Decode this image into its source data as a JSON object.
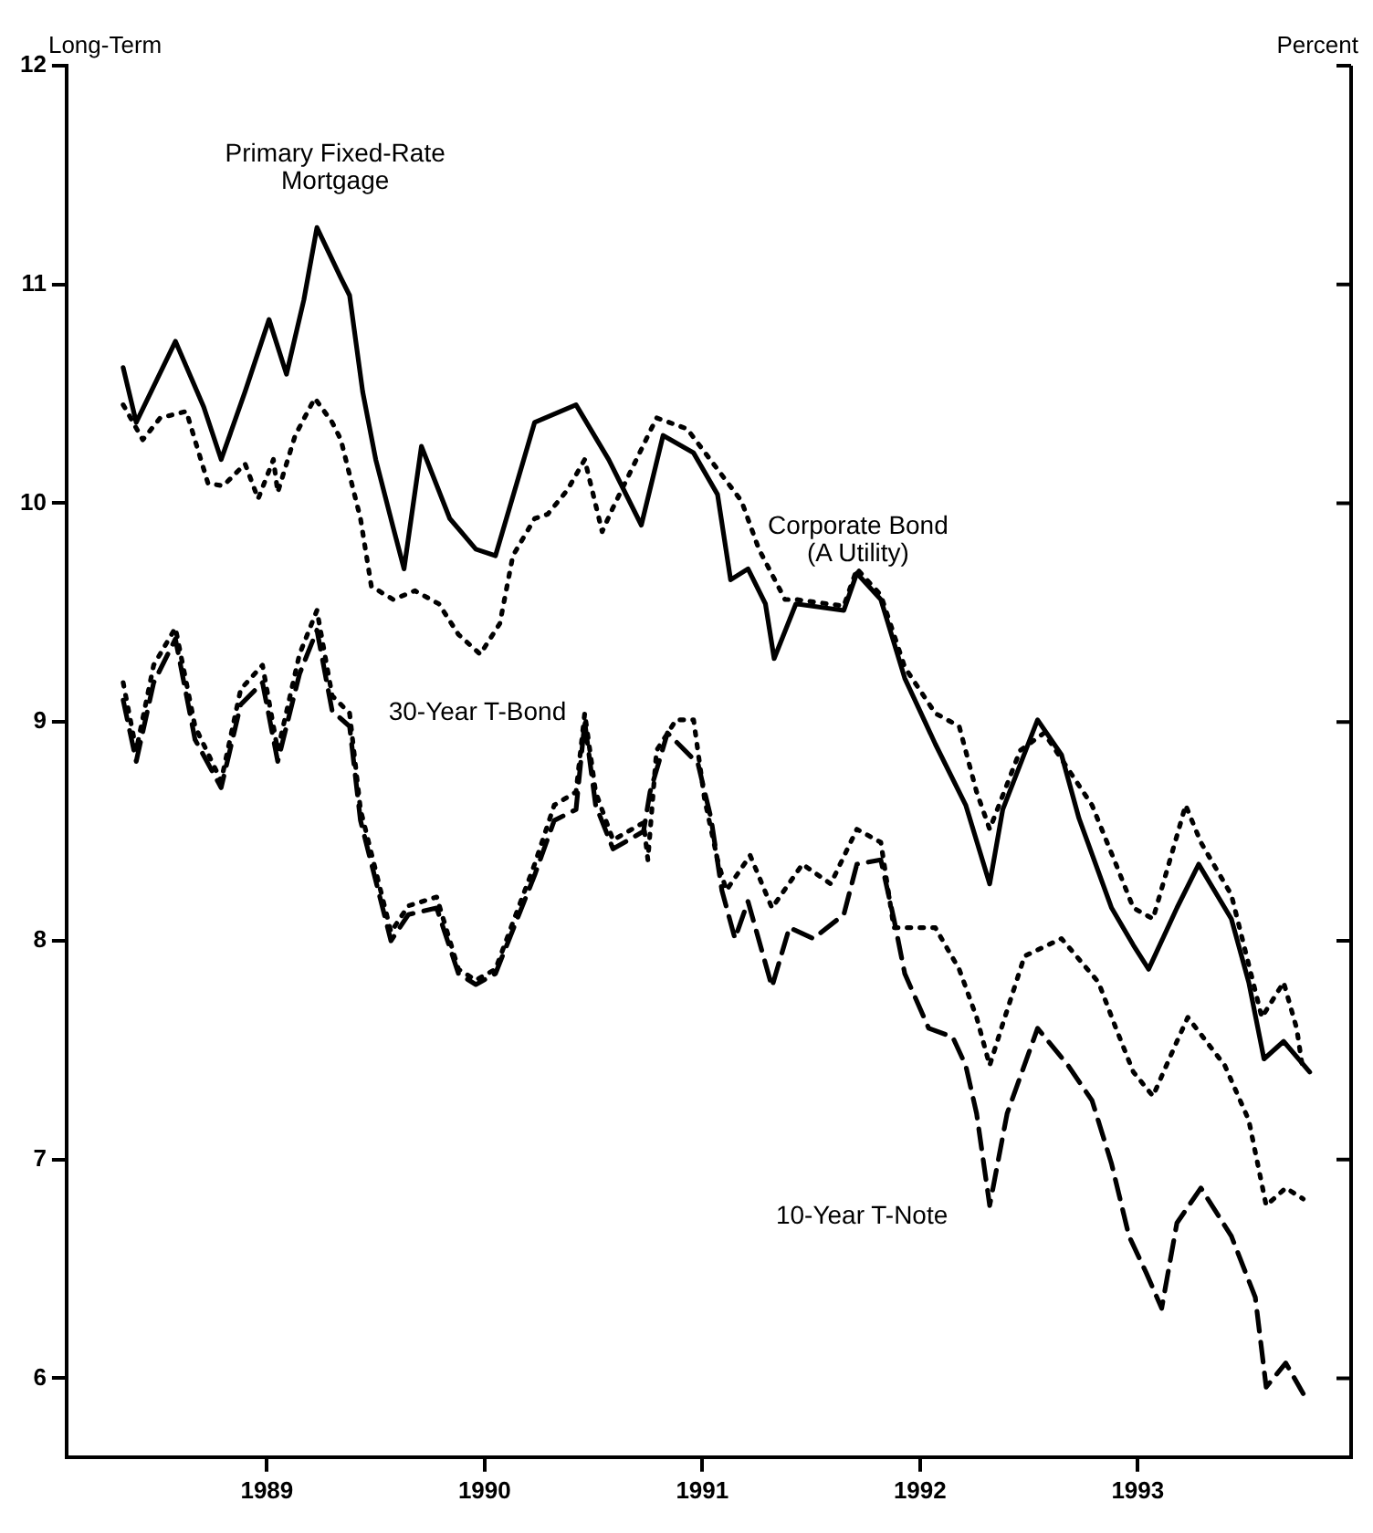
{
  "chart_data": {
    "type": "line",
    "title": "Long-Term",
    "ylabel": "Percent",
    "xlim": [
      1988.08,
      1993.98
    ],
    "xticks": [
      1989,
      1990,
      1991,
      1992,
      1993
    ],
    "ylim": [
      5.64,
      12
    ],
    "yticks": [
      6,
      7,
      8,
      9,
      10,
      11,
      12
    ],
    "grid": false,
    "legend": false,
    "marker": "none",
    "series": [
      {
        "name": "Primary Fixed-Rate Mortgage",
        "color": "#000000",
        "line_style": "solid",
        "x": [
          1988.34,
          1988.4,
          1988.58,
          1988.71,
          1988.79,
          1988.9,
          1989.01,
          1989.09,
          1989.17,
          1989.23,
          1989.34,
          1989.38,
          1989.44,
          1989.5,
          1989.58,
          1989.63,
          1989.71,
          1989.84,
          1989.96,
          1990.05,
          1990.18,
          1990.23,
          1990.42,
          1990.57,
          1990.72,
          1990.82,
          1990.96,
          1991.07,
          1991.13,
          1991.21,
          1991.29,
          1991.33,
          1991.43,
          1991.65,
          1991.71,
          1991.82,
          1991.93,
          1992.07,
          1992.21,
          1992.32,
          1992.38,
          1992.54,
          1992.65,
          1992.73,
          1992.88,
          1992.98,
          1993.05,
          1993.18,
          1993.28,
          1993.43,
          1993.51,
          1993.58,
          1993.67,
          1993.79
        ],
        "values": [
          10.62,
          10.37,
          10.74,
          10.44,
          10.2,
          10.51,
          10.84,
          10.59,
          10.93,
          11.26,
          11.03,
          10.95,
          10.51,
          10.2,
          9.89,
          9.7,
          10.26,
          9.93,
          9.79,
          9.76,
          10.2,
          10.37,
          10.45,
          10.2,
          9.9,
          10.31,
          10.23,
          10.04,
          9.65,
          9.7,
          9.54,
          9.29,
          9.54,
          9.51,
          9.68,
          9.56,
          9.2,
          8.9,
          8.62,
          8.26,
          8.6,
          9.01,
          8.85,
          8.56,
          8.15,
          7.98,
          7.87,
          8.15,
          8.35,
          8.1,
          7.81,
          7.46,
          7.54,
          7.4
        ]
      },
      {
        "name": "Corporate Bond (A Utility)",
        "color": "#000000",
        "line_style": "dotted",
        "x": [
          1988.34,
          1988.43,
          1988.51,
          1988.63,
          1988.73,
          1988.8,
          1988.9,
          1988.96,
          1989.03,
          1989.05,
          1989.13,
          1989.22,
          1989.3,
          1989.34,
          1989.43,
          1989.48,
          1989.58,
          1989.68,
          1989.79,
          1989.88,
          1989.98,
          1990.07,
          1990.13,
          1990.23,
          1990.29,
          1990.38,
          1990.46,
          1990.54,
          1990.59,
          1990.79,
          1990.93,
          1991.18,
          1991.26,
          1991.38,
          1991.43,
          1991.65,
          1991.71,
          1991.82,
          1991.93,
          1992.07,
          1992.18,
          1992.26,
          1992.32,
          1992.46,
          1992.57,
          1992.79,
          1992.9,
          1992.98,
          1993.07,
          1993.18,
          1993.22,
          1993.29,
          1993.43,
          1993.57,
          1993.67,
          1993.73,
          1993.76
        ],
        "values": [
          10.45,
          10.29,
          10.39,
          10.42,
          10.09,
          10.08,
          10.18,
          10.02,
          10.2,
          10.05,
          10.31,
          10.48,
          10.37,
          10.29,
          9.93,
          9.62,
          9.56,
          9.6,
          9.54,
          9.4,
          9.31,
          9.45,
          9.76,
          9.93,
          9.95,
          10.06,
          10.2,
          9.87,
          9.98,
          10.39,
          10.34,
          10.01,
          9.79,
          9.56,
          9.56,
          9.53,
          9.7,
          9.58,
          9.25,
          9.04,
          8.98,
          8.68,
          8.51,
          8.87,
          8.95,
          8.62,
          8.35,
          8.15,
          8.1,
          8.48,
          8.62,
          8.45,
          8.21,
          7.65,
          7.81,
          7.6,
          7.4
        ]
      },
      {
        "name": "30-Year T-Bond",
        "color": "#000000",
        "line_style": "dotted",
        "x": [
          1988.34,
          1988.4,
          1988.48,
          1988.58,
          1988.67,
          1988.79,
          1988.88,
          1988.98,
          1989.05,
          1989.15,
          1989.23,
          1989.3,
          1989.38,
          1989.43,
          1989.57,
          1989.65,
          1989.78,
          1989.88,
          1989.96,
          1990.05,
          1990.23,
          1990.32,
          1990.42,
          1990.46,
          1990.51,
          1990.59,
          1990.73,
          1990.75,
          1990.79,
          1990.88,
          1990.96,
          1991.01,
          1991.07,
          1991.11,
          1991.22,
          1991.32,
          1991.46,
          1991.59,
          1991.71,
          1991.82,
          1991.88,
          1992.07,
          1992.18,
          1992.26,
          1992.32,
          1992.38,
          1992.48,
          1992.65,
          1992.82,
          1992.9,
          1992.98,
          1993.07,
          1993.18,
          1993.23,
          1993.4,
          1993.51,
          1993.59,
          1993.68,
          1993.76
        ],
        "values": [
          9.18,
          8.87,
          9.26,
          9.43,
          8.98,
          8.73,
          9.15,
          9.26,
          8.87,
          9.31,
          9.51,
          9.12,
          9.04,
          8.6,
          8.04,
          8.16,
          8.2,
          7.87,
          7.82,
          7.87,
          8.35,
          8.62,
          8.68,
          9.04,
          8.68,
          8.46,
          8.54,
          8.37,
          8.87,
          9.01,
          9.01,
          8.65,
          8.37,
          8.23,
          8.39,
          8.15,
          8.35,
          8.26,
          8.51,
          8.45,
          8.06,
          8.06,
          7.87,
          7.65,
          7.43,
          7.62,
          7.93,
          8.01,
          7.81,
          7.6,
          7.4,
          7.29,
          7.54,
          7.65,
          7.43,
          7.18,
          6.79,
          6.87,
          6.82
        ]
      },
      {
        "name": "10-Year T-Note",
        "color": "#000000",
        "line_style": "dashed",
        "x": [
          1988.34,
          1988.4,
          1988.48,
          1988.58,
          1988.67,
          1988.79,
          1988.88,
          1988.98,
          1989.05,
          1989.15,
          1989.23,
          1989.3,
          1989.38,
          1989.43,
          1989.57,
          1989.65,
          1989.78,
          1989.88,
          1989.96,
          1990.05,
          1990.23,
          1990.32,
          1990.42,
          1990.46,
          1990.51,
          1990.59,
          1990.73,
          1990.76,
          1990.84,
          1990.98,
          1991.04,
          1991.09,
          1991.15,
          1991.21,
          1991.32,
          1991.4,
          1991.51,
          1991.65,
          1991.71,
          1991.82,
          1991.88,
          1991.93,
          1992.04,
          1992.15,
          1992.21,
          1992.26,
          1992.32,
          1992.4,
          1992.54,
          1992.68,
          1992.79,
          1992.88,
          1992.96,
          1993.04,
          1993.11,
          1993.18,
          1993.29,
          1993.43,
          1993.54,
          1993.59,
          1993.68,
          1993.76
        ],
        "values": [
          9.1,
          8.82,
          9.18,
          9.38,
          8.92,
          8.7,
          9.08,
          9.18,
          8.82,
          9.22,
          9.42,
          9.05,
          8.98,
          8.55,
          8.0,
          8.12,
          8.15,
          7.85,
          7.8,
          7.85,
          8.3,
          8.55,
          8.6,
          9.0,
          8.62,
          8.42,
          8.5,
          8.68,
          8.95,
          8.81,
          8.56,
          8.23,
          8.01,
          8.18,
          7.79,
          8.06,
          8.01,
          8.12,
          8.35,
          8.37,
          8.1,
          7.85,
          7.6,
          7.56,
          7.43,
          7.21,
          6.79,
          7.21,
          7.6,
          7.43,
          7.27,
          6.98,
          6.65,
          6.48,
          6.32,
          6.71,
          6.87,
          6.65,
          6.37,
          5.96,
          6.07,
          5.93
        ]
      }
    ]
  }
}
